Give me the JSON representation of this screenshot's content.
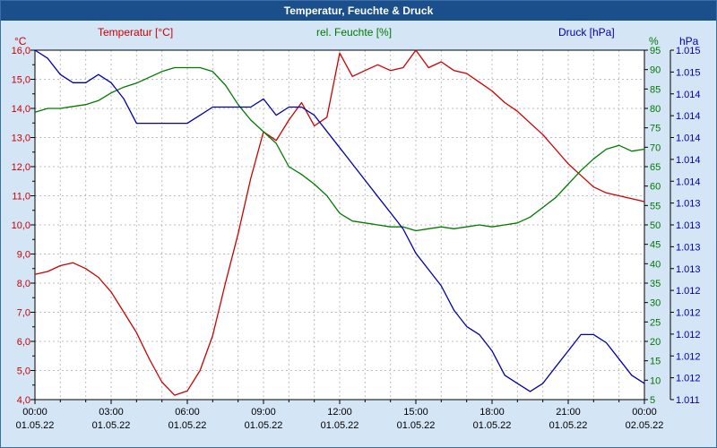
{
  "window": {
    "title": "Temperatur, Feuchte & Druck"
  },
  "legend": {
    "temperature": "Temperatur [°C]",
    "humidity": "rel. Feuchte [%]",
    "pressure": "Druck [hPa]"
  },
  "axes": {
    "left_unit": "°C",
    "right_inner_unit": "%",
    "right_outer_unit": "hPa",
    "left_ticks": [
      "16,0",
      "15,0",
      "14,0",
      "13,0",
      "12,0",
      "11,0",
      "10,0",
      "9,0",
      "8,0",
      "7,0",
      "6,0",
      "5,0",
      "4,0"
    ],
    "right_inner_ticks": [
      "95",
      "90",
      "85",
      "80",
      "75",
      "70",
      "65",
      "60",
      "55",
      "50",
      "45",
      "40",
      "35",
      "30",
      "25",
      "20",
      "15",
      "10",
      "5"
    ],
    "right_outer_ticks": [
      "1.015",
      "1.015",
      "1.014",
      "1.014",
      "1.014",
      "1.014",
      "1.014",
      "1.013",
      "1.013",
      "1.013",
      "1.013",
      "1.012",
      "1.012",
      "1.012",
      "1.012",
      "1.012",
      "1.011"
    ],
    "x_time_ticks": [
      "00:00",
      "03:00",
      "06:00",
      "09:00",
      "12:00",
      "15:00",
      "18:00",
      "21:00",
      "00:00"
    ],
    "x_date_ticks": [
      "01.05.22",
      "01.05.22",
      "01.05.22",
      "01.05.22",
      "01.05.22",
      "01.05.22",
      "01.05.22",
      "01.05.22",
      "02.05.22"
    ]
  },
  "colors": {
    "temperature": "#cc0000",
    "humidity": "#007a00",
    "pressure": "#0000aa",
    "grid": "#bdbdbd",
    "axis": "#000000",
    "title_bar": "#1a4f8b",
    "background": "#d4e5f6",
    "plot_bg": "#ffffff"
  },
  "chart_data": {
    "type": "line",
    "title": "Temperatur, Feuchte & Druck",
    "x_range_hours": [
      0,
      24
    ],
    "x_hours": [
      0,
      0.5,
      1,
      1.5,
      2,
      2.5,
      3,
      3.5,
      4,
      4.5,
      5,
      5.5,
      6,
      6.5,
      7,
      7.5,
      8,
      8.5,
      9,
      9.5,
      10,
      10.5,
      11,
      11.5,
      12,
      12.5,
      13,
      13.5,
      14,
      14.5,
      15,
      15.5,
      16,
      16.5,
      17,
      17.5,
      18,
      18.5,
      19,
      19.5,
      20,
      20.5,
      21,
      21.5,
      22,
      22.5,
      23,
      23.5,
      24
    ],
    "ylim_temp": [
      4,
      16
    ],
    "ylim_humidity": [
      5,
      95
    ],
    "ylim_pressure": [
      1011.1,
      1015.4
    ],
    "grid": true,
    "series": [
      {
        "name": "Temperatur [°C]",
        "axis": "temp",
        "color": "#cc0000",
        "values": [
          8.3,
          8.4,
          8.6,
          8.7,
          8.5,
          8.2,
          7.7,
          7.0,
          6.3,
          5.4,
          4.6,
          4.15,
          4.3,
          5.0,
          6.2,
          8.0,
          9.7,
          11.6,
          13.2,
          12.9,
          13.6,
          14.2,
          13.4,
          13.7,
          15.9,
          15.1,
          15.3,
          15.5,
          15.3,
          15.4,
          16.0,
          15.4,
          15.6,
          15.3,
          15.2,
          14.9,
          14.6,
          14.2,
          13.9,
          13.5,
          13.1,
          12.6,
          12.1,
          11.7,
          11.3,
          11.1,
          11.0,
          10.9,
          10.8
        ]
      },
      {
        "name": "rel. Feuchte [%]",
        "axis": "humidity",
        "color": "#007a00",
        "values": [
          79,
          80,
          80,
          80.5,
          81,
          82,
          84,
          85.5,
          86.5,
          88,
          89.5,
          90.5,
          90.5,
          90.5,
          89.5,
          86,
          81,
          77,
          74,
          71,
          65,
          63,
          60.5,
          57.5,
          53,
          51,
          50.5,
          50,
          49.5,
          49.5,
          48.5,
          49,
          49.5,
          49,
          49.5,
          50,
          49.5,
          50,
          50.5,
          52,
          54.5,
          57,
          60.5,
          64,
          67,
          69.5,
          70.5,
          69,
          69.5
        ]
      },
      {
        "name": "Druck [hPa]",
        "axis": "pressure",
        "color": "#0000aa",
        "values": [
          1015.4,
          1015.3,
          1015.1,
          1015.0,
          1015.0,
          1015.1,
          1015.0,
          1014.8,
          1014.5,
          1014.5,
          1014.5,
          1014.5,
          1014.5,
          1014.6,
          1014.7,
          1014.7,
          1014.7,
          1014.7,
          1014.8,
          1014.6,
          1014.7,
          1014.7,
          1014.6,
          1014.4,
          1014.2,
          1014.0,
          1013.8,
          1013.6,
          1013.4,
          1013.2,
          1012.9,
          1012.7,
          1012.5,
          1012.2,
          1012.0,
          1011.9,
          1011.7,
          1011.4,
          1011.3,
          1011.2,
          1011.3,
          1011.5,
          1011.7,
          1011.9,
          1011.9,
          1011.8,
          1011.6,
          1011.4,
          1011.3
        ]
      }
    ]
  }
}
